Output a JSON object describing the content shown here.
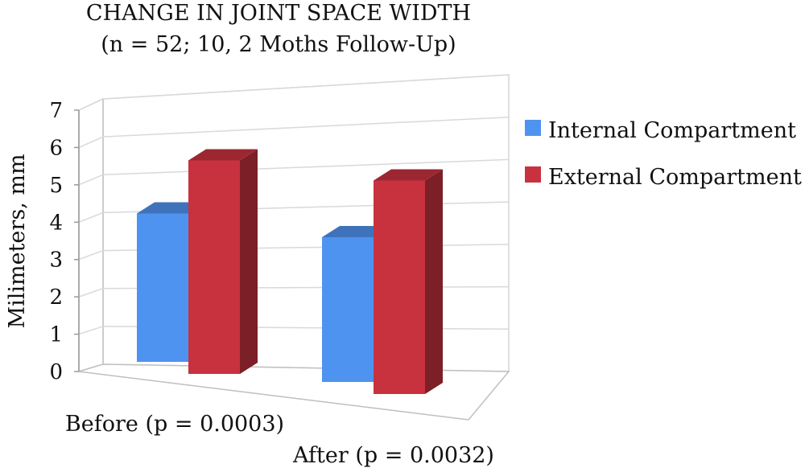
{
  "chart_data": {
    "type": "bar",
    "title": "CHANGE IN JOINT SPACE WIDTH",
    "subtitle": "(n = 52; 10, 2 Moths Follow-Up)",
    "ylabel": "Milimeters, mm",
    "xlabel": "",
    "ylim": [
      0,
      7
    ],
    "yticks": [
      "0",
      "1",
      "2",
      "3",
      "4",
      "5",
      "6",
      "7"
    ],
    "categories": [
      "Before (p = 0.0003)",
      "After (p = 0.0032)"
    ],
    "series": [
      {
        "name": "Internal Compartment",
        "values": [
          4.1,
          4.0
        ],
        "color": "#4f93f0"
      },
      {
        "name": "External Compartment",
        "values": [
          5.9,
          5.9
        ],
        "color": "#c8323f"
      }
    ],
    "grid": true,
    "legend": "right",
    "style": "3d-column"
  }
}
